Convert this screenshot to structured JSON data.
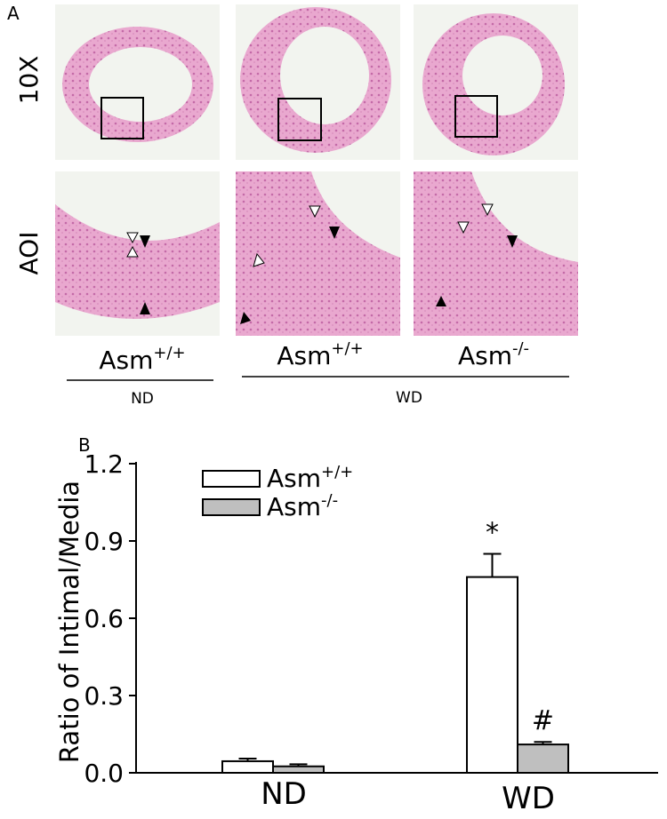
{
  "panel_a": {
    "label": "A",
    "row_labels": [
      "10X",
      "AOI"
    ],
    "columns": [
      {
        "genotype": "Asm",
        "superscript": "+/+"
      },
      {
        "genotype": "Asm",
        "superscript": "+/+"
      },
      {
        "genotype": "Asm",
        "superscript": "-/-"
      }
    ],
    "groups": [
      "ND",
      "WD"
    ]
  },
  "chart_data": {
    "type": "bar",
    "panel_label": "B",
    "ylabel": "Ratio of Intimal/Media",
    "categories": [
      "ND",
      "WD"
    ],
    "series": [
      {
        "name": "Asm",
        "name_superscript": "+/+",
        "color": "#ffffff",
        "values": [
          0.045,
          0.76
        ],
        "errors": [
          0.01,
          0.09
        ],
        "annotations": [
          null,
          "*"
        ]
      },
      {
        "name": "Asm",
        "name_superscript": "-/-",
        "color": "#bfbfbf",
        "values": [
          0.025,
          0.11
        ],
        "errors": [
          0.008,
          0.01
        ],
        "annotations": [
          null,
          "#"
        ]
      }
    ],
    "ylim": [
      0,
      1.2
    ],
    "yticks": [
      {
        "value": 0,
        "label": "0.0"
      },
      0.3,
      0.6,
      0.9,
      1.2
    ],
    "legend": "upper left"
  }
}
